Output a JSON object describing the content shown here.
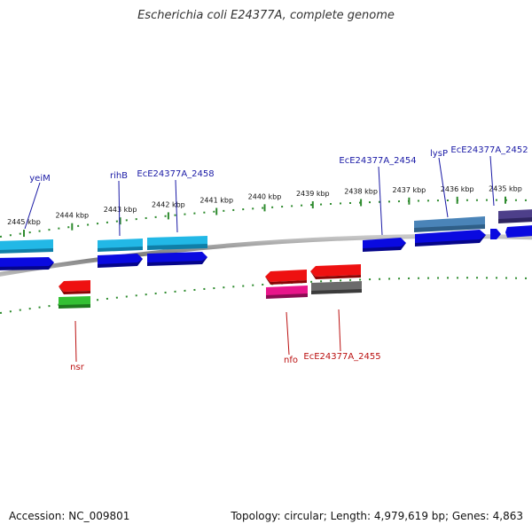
{
  "title": "Escherichia coli E24377A, complete genome",
  "accession": "Accession: NC_009801",
  "summary": "Topology: circular; Length: 4,979,619 bp; Genes: 4,863",
  "ticks": [
    "2445 kbp",
    "2444 kbp",
    "2443 kbp",
    "2442 kbp",
    "2441 kbp",
    "2440 kbp",
    "2439 kbp",
    "2438 kbp",
    "2437 kbp",
    "2436 kbp",
    "2435 kbp"
  ],
  "genes_top": [
    "yeiM",
    "rihB",
    "EcE24377A_2458",
    "EcE24377A_2454",
    "lysP",
    "EcE24377A_2452"
  ],
  "genes_bottom": [
    "nsr",
    "nfo",
    "EcE24377A_2455"
  ],
  "colors": {
    "label_top": "#1a1aa6",
    "label_bottom": "#bb1111",
    "backbone": "#888888",
    "tick": "#2e8b2e",
    "blue": "#0a0ae0",
    "cyan": "#22b8e6",
    "steel": "#4a84b8",
    "purple": "#4d3f8a",
    "red": "#ee1111",
    "green": "#33c033",
    "pink": "#e8158a",
    "gray": "#6b6b6b"
  }
}
